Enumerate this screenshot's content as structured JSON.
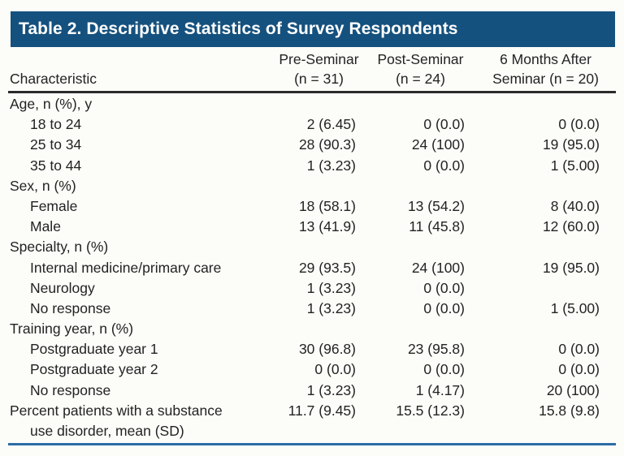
{
  "title_bar": {
    "text": "Table 2. Descriptive Statistics of Survey Respondents"
  },
  "table": {
    "columns": {
      "characteristic": "Characteristic",
      "pre_line1": "Pre-Seminar",
      "pre_line2": "(n = 31)",
      "post_line1": "Post-Seminar",
      "post_line2": "(n = 24)",
      "six_line1": "6 Months After",
      "six_line2": "Seminar (n = 20)"
    },
    "rows": [
      {
        "type": "group",
        "label": "Age, n (%), y"
      },
      {
        "type": "item",
        "label": "18 to 24",
        "pre": "2 (6.45)",
        "post": "0 (0.0)",
        "six": "0 (0.0)"
      },
      {
        "type": "item",
        "label": "25 to 34",
        "pre": "28 (90.3)",
        "post": "24 (100)",
        "six": "19 (95.0)"
      },
      {
        "type": "item",
        "label": "35 to 44",
        "pre": "1 (3.23)",
        "post": "0 (0.0)",
        "six": "1 (5.00)"
      },
      {
        "type": "group",
        "label": "Sex, n (%)"
      },
      {
        "type": "item",
        "label": "Female",
        "pre": "18 (58.1)",
        "post": "13 (54.2)",
        "six": "8 (40.0)"
      },
      {
        "type": "item",
        "label": "Male",
        "pre": "13 (41.9)",
        "post": "11 (45.8)",
        "six": "12 (60.0)"
      },
      {
        "type": "group",
        "label": "Specialty, n (%)"
      },
      {
        "type": "item",
        "label": "Internal medicine/primary care",
        "pre": "29 (93.5)",
        "post": "24 (100)",
        "six": "19 (95.0)"
      },
      {
        "type": "item",
        "label": "Neurology",
        "pre": "1 (3.23)",
        "post": "0 (0.0)",
        "six": ""
      },
      {
        "type": "item",
        "label": "No response",
        "pre": "1 (3.23)",
        "post": "0 (0.0)",
        "six": "1 (5.00)"
      },
      {
        "type": "group",
        "label": "Training year, n (%)"
      },
      {
        "type": "item",
        "label": "Postgraduate year 1",
        "pre": "30 (96.8)",
        "post": "23 (95.8)",
        "six": "0 (0.0)"
      },
      {
        "type": "item",
        "label": "Postgraduate year 2",
        "pre": "0 (0.0)",
        "post": "0 (0.0)",
        "six": "0 (0.0)"
      },
      {
        "type": "item",
        "label": "No response",
        "pre": "1 (3.23)",
        "post": "1 (4.17)",
        "six": "20 (100)"
      },
      {
        "type": "wrap",
        "label": "Percent patients with a substance",
        "label2": "use disorder, mean (SD)",
        "pre": "11.7 (9.45)",
        "post": "15.5 (12.3)",
        "six": "15.8 (9.8)"
      }
    ]
  },
  "colors": {
    "title_bar_background": "#15517e",
    "title_text": "#ffffff",
    "header_rule": "#2a2a2a",
    "bottom_rule": "#2b6ca5",
    "body_text": "#232323",
    "page_background": "#fcfcf9"
  }
}
